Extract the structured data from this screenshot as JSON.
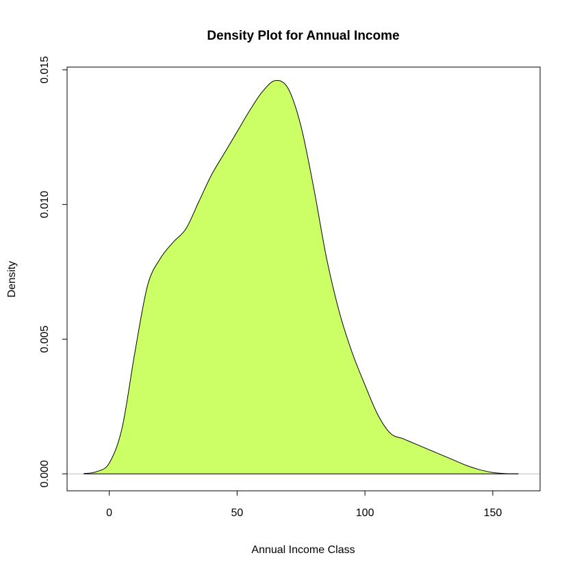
{
  "chart_data": {
    "type": "area",
    "title": "Density Plot for Annual Income",
    "xlabel": "Annual Income Class",
    "ylabel": "Density",
    "xlim": [
      -16.5,
      168.5
    ],
    "ylim": [
      -0.00063,
      0.0151
    ],
    "x_ticks": [
      0,
      50,
      100,
      150
    ],
    "x_tick_labels": [
      "0",
      "50",
      "100",
      "150"
    ],
    "y_ticks": [
      0.0,
      0.005,
      0.01,
      0.015
    ],
    "y_tick_labels": [
      "0.000",
      "0.005",
      "0.010",
      "0.015"
    ],
    "grid": false,
    "legend": "none",
    "fill_color": "#CCFF66",
    "line_color": "#000000",
    "baseline_color": "#BEBEBE",
    "series": [
      {
        "x": [
          -10,
          -5,
          0,
          5,
          10,
          15,
          20,
          25,
          30,
          35,
          40,
          45,
          50,
          55,
          60,
          65,
          70,
          75,
          80,
          85,
          90,
          95,
          100,
          105,
          110,
          115,
          120,
          125,
          130,
          135,
          140,
          145,
          150,
          155,
          160
        ],
        "y": [
          1e-05,
          8e-05,
          0.0004,
          0.0017,
          0.0045,
          0.007,
          0.008,
          0.0086,
          0.0091,
          0.0101,
          0.0111,
          0.0119,
          0.0127,
          0.0135,
          0.0142,
          0.0146,
          0.0143,
          0.0129,
          0.0106,
          0.008,
          0.006,
          0.0045,
          0.0033,
          0.0022,
          0.0015,
          0.0013,
          0.0011,
          0.0009,
          0.0007,
          0.0005,
          0.0003,
          0.00015,
          5e-05,
          1e-05,
          0.0
        ]
      }
    ]
  }
}
